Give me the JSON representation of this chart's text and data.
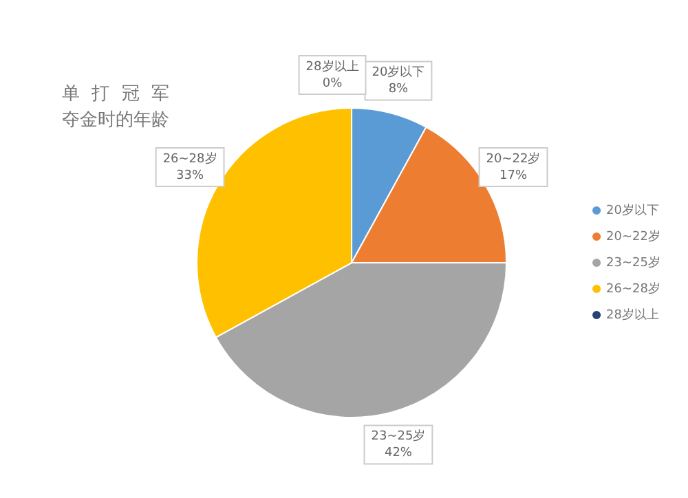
{
  "chart_data": {
    "type": "pie",
    "title": "单打冠军夺金时的年龄",
    "categories": [
      "20岁以下",
      "20~22岁",
      "23~25岁",
      "26~28岁",
      "28岁以上"
    ],
    "values": [
      8,
      17,
      42,
      33,
      0
    ],
    "colors": [
      "#5b9bd5",
      "#ed7d31",
      "#a5a5a5",
      "#ffc000",
      "#264478"
    ],
    "value_labels": [
      "8%",
      "17%",
      "42%",
      "33%",
      "0%"
    ],
    "legend": "right"
  }
}
